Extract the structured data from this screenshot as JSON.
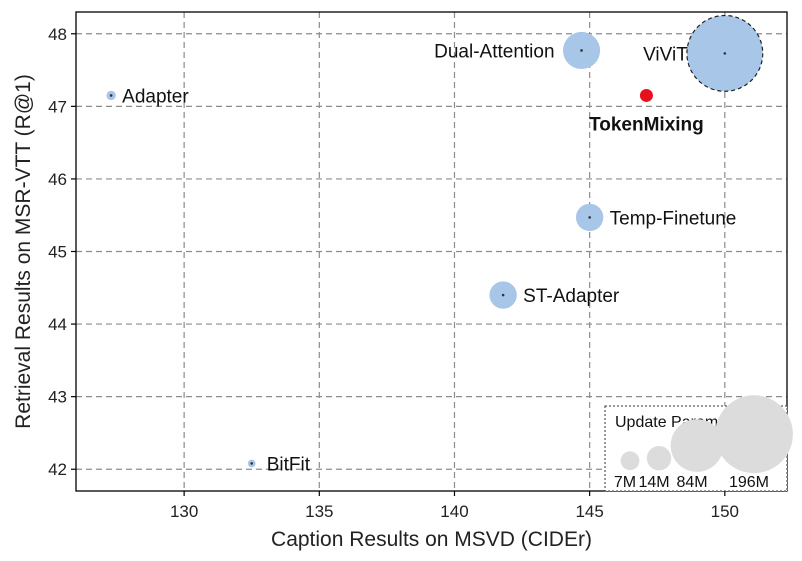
{
  "chart_data": {
    "type": "scatter",
    "title": "",
    "xlabel": "Caption Results on MSVD (CIDEr)",
    "ylabel": "Retrieval Results on MSR-VTT (R@1)",
    "xlim": [
      126,
      152.3
    ],
    "ylim": [
      41.7,
      48.3
    ],
    "xticks": [
      130,
      135,
      140,
      145,
      150
    ],
    "yticks": [
      42,
      43,
      44,
      45,
      46,
      47,
      48
    ],
    "grid": true,
    "colors": {
      "bubble": "#a7c6e8",
      "highlight": "#e8111b",
      "legend_bubble": "#dcdcdc",
      "grid": "#8c8c8c"
    },
    "points": [
      {
        "name": "Adapter",
        "x": 127.3,
        "y": 47.15,
        "params_m": 1.5
      },
      {
        "name": "BitFit",
        "x": 132.5,
        "y": 42.08,
        "params_m": 0.8
      },
      {
        "name": "ST-Adapter",
        "x": 141.8,
        "y": 44.4,
        "params_m": 22
      },
      {
        "name": "Temp-Finetune",
        "x": 145.0,
        "y": 45.47,
        "params_m": 22
      },
      {
        "name": "Dual-Attention",
        "x": 144.7,
        "y": 47.77,
        "params_m": 43
      },
      {
        "name": "ViViT",
        "x": 150.0,
        "y": 47.73,
        "params_m": 196
      },
      {
        "name": "TokenMixing",
        "x": 147.1,
        "y": 47.15,
        "params_m": 5,
        "highlight": true
      }
    ],
    "legend": {
      "title": "Update Params",
      "position": "bottom-right",
      "entries": [
        {
          "label": "7M",
          "params_m": 7
        },
        {
          "label": "14M",
          "params_m": 14
        },
        {
          "label": "84M",
          "params_m": 84
        },
        {
          "label": "196M",
          "params_m": 196
        }
      ]
    }
  }
}
